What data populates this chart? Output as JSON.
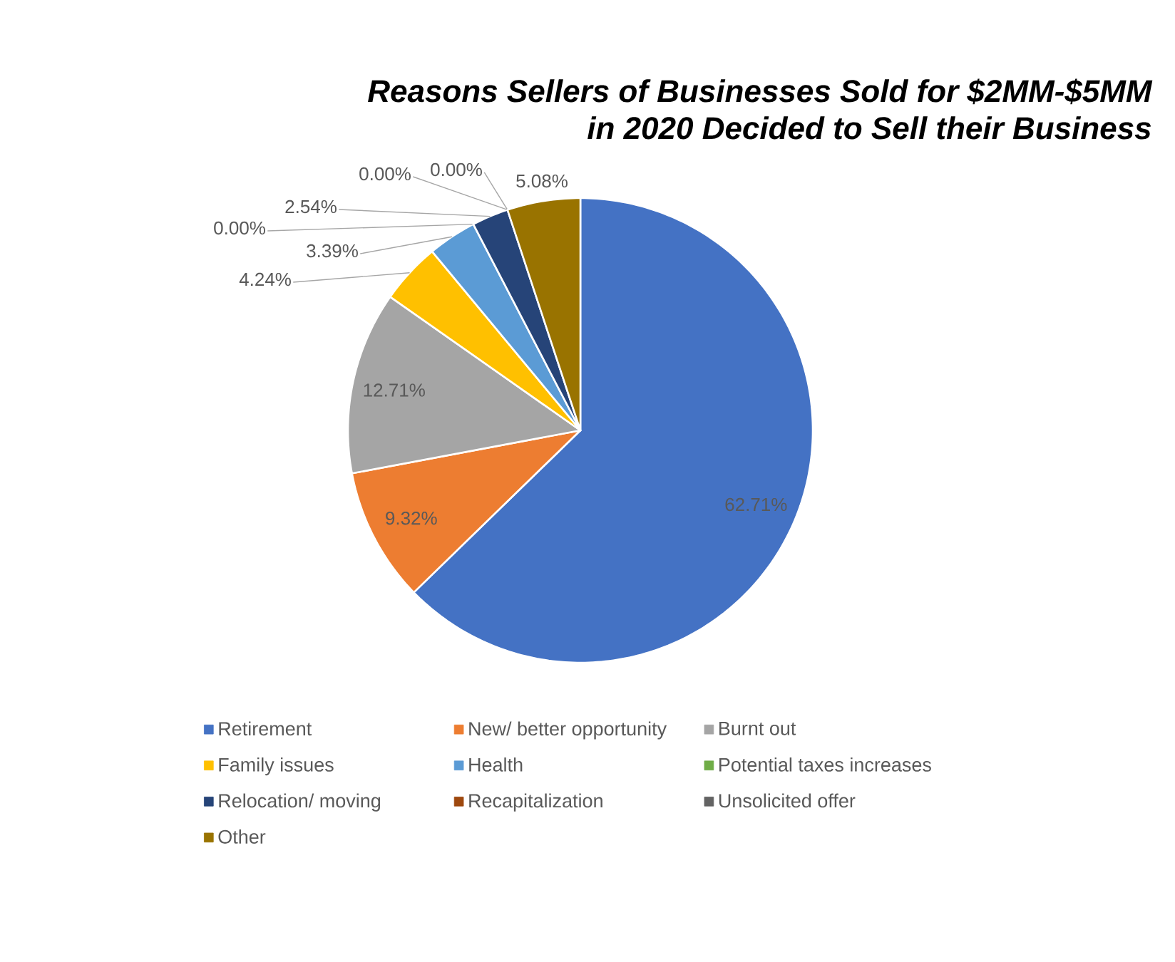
{
  "chart_data": {
    "type": "pie",
    "title": "Reasons Sellers of Businesses Sold for $2MM-$5MM in 2020 Decided to Sell their Business",
    "categories": [
      "Retirement",
      "New/ better opportunity",
      "Burnt out",
      "Family issues",
      "Health",
      "Potential taxes increases",
      "Relocation/ moving",
      "Recapitalization",
      "Unsolicited offer",
      "Other"
    ],
    "values": [
      62.71,
      9.32,
      12.71,
      4.24,
      3.39,
      0.0,
      2.54,
      0.0,
      0.0,
      5.08
    ],
    "colors": [
      "#4472c4",
      "#ed7d31",
      "#a5a5a5",
      "#ffc000",
      "#5b9bd5",
      "#70ad47",
      "#264478",
      "#9e480e",
      "#636363",
      "#997300"
    ],
    "value_labels": [
      "62.71%",
      "9.32%",
      "12.71%",
      "4.24%",
      "3.39%",
      "0.00%",
      "2.54%",
      "0.00%",
      "0.00%",
      "5.08%"
    ],
    "legend": "bottom"
  }
}
